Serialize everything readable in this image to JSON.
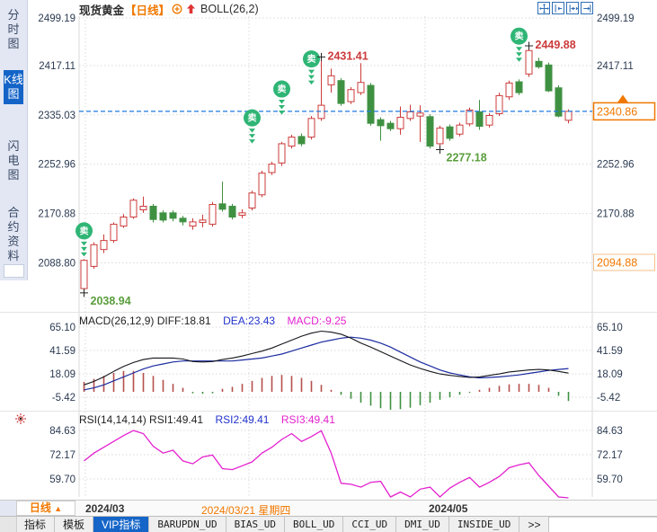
{
  "palette": {
    "accent": "#f07800",
    "up": "#cc3b3b",
    "down": "#3f9142",
    "signal": "#2fb575",
    "current_line": "#1e7adf",
    "diff": "#15161c",
    "dea": "#1b2ba0",
    "magenta": "#e321cf",
    "axis_text": "#2b3a52",
    "grid": "#d9d9d9",
    "annotation_low": "#5a9e3c",
    "soft_orange": "#f5c08a"
  },
  "sidebar": {
    "items": [
      {
        "label": "分时图",
        "active": false
      },
      {
        "label": "K线图",
        "active": true
      },
      {
        "label": "闪电图",
        "active": false
      },
      {
        "label": "合约资料",
        "active": false
      }
    ]
  },
  "header": {
    "symbol": "现货黄金",
    "period_tag": "【日线】",
    "indicator": "BOLL(26,2)",
    "icons": [
      "circle-plus-icon",
      "red-up-arrow-icon"
    ]
  },
  "toolbar": {
    "buttons": [
      "pan-crosshair",
      "compress-left",
      "compress-right",
      "shift-right"
    ]
  },
  "chart_data": {
    "type": "candlestick",
    "title": "现货黄金 日线 BOLL(26,2)",
    "main": {
      "y_ticks": [
        2499.19,
        2417.11,
        2335.03,
        2252.96,
        2170.88,
        2088.8
      ],
      "price_top": 2499.19,
      "price_bottom": 2088.8,
      "current_price": 2340.86,
      "low_marker": 2094.88,
      "sell_label": "卖",
      "sell_signals": [
        {
          "index": 0,
          "price": 2142
        },
        {
          "index": 17,
          "price": 2330
        },
        {
          "index": 20,
          "price": 2378
        },
        {
          "index": 23,
          "price": 2428
        },
        {
          "index": 44,
          "price": 2466
        }
      ],
      "annotations": [
        {
          "text": "2431.41",
          "type": "high",
          "index": 24,
          "color": "up"
        },
        {
          "text": "2449.88",
          "type": "high",
          "index": 45,
          "color": "up"
        },
        {
          "text": "2277.18",
          "type": "low",
          "index": 36,
          "color": "low"
        },
        {
          "text": "2038.94",
          "type": "low",
          "index": 0,
          "color": "low"
        }
      ],
      "candles": [
        [
          2046,
          2095,
          2038.94,
          2093
        ],
        [
          2083,
          2123,
          2079,
          2119
        ],
        [
          2111,
          2136,
          2105,
          2126
        ],
        [
          2126,
          2156,
          2122,
          2153
        ],
        [
          2150,
          2170,
          2147,
          2165
        ],
        [
          2165,
          2196,
          2162,
          2193
        ],
        [
          2177,
          2199,
          2172,
          2183
        ],
        [
          2183,
          2187,
          2156,
          2161
        ],
        [
          2172,
          2176,
          2156,
          2160
        ],
        [
          2172,
          2176,
          2158,
          2163
        ],
        [
          2163,
          2167,
          2151,
          2157
        ],
        [
          2150,
          2163,
          2144,
          2157
        ],
        [
          2156,
          2169,
          2148,
          2160
        ],
        [
          2153,
          2190,
          2149,
          2186
        ],
        [
          2187,
          2224,
          2174,
          2178
        ],
        [
          2183,
          2187,
          2161,
          2165
        ],
        [
          2168,
          2178,
          2163,
          2172
        ],
        [
          2180,
          2209,
          2176,
          2205
        ],
        [
          2202,
          2242,
          2198,
          2238
        ],
        [
          2239,
          2257,
          2235,
          2253
        ],
        [
          2255,
          2290,
          2250,
          2287
        ],
        [
          2283,
          2302,
          2279,
          2298
        ],
        [
          2299,
          2304,
          2283,
          2287
        ],
        [
          2298,
          2333,
          2294,
          2329
        ],
        [
          2329,
          2431.41,
          2325,
          2351
        ],
        [
          2385,
          2412,
          2372,
          2400
        ],
        [
          2392,
          2396,
          2350,
          2354
        ],
        [
          2357,
          2381,
          2353,
          2377
        ],
        [
          2372,
          2421,
          2368,
          2389
        ],
        [
          2384,
          2388,
          2317,
          2321
        ],
        [
          2327,
          2331,
          2292,
          2317
        ],
        [
          2321,
          2325,
          2308,
          2312
        ],
        [
          2312,
          2349,
          2302,
          2331
        ],
        [
          2329,
          2352,
          2325,
          2340
        ],
        [
          2333,
          2351,
          2290,
          2338
        ],
        [
          2332,
          2336,
          2279,
          2283
        ],
        [
          2287,
          2317,
          2277.18,
          2313
        ],
        [
          2315,
          2319,
          2292,
          2296
        ],
        [
          2303,
          2322,
          2299,
          2318
        ],
        [
          2320,
          2347,
          2316,
          2343
        ],
        [
          2340,
          2360,
          2310,
          2316
        ],
        [
          2318,
          2338,
          2314,
          2334
        ],
        [
          2337,
          2372,
          2333,
          2367
        ],
        [
          2365,
          2392,
          2360,
          2388
        ],
        [
          2390,
          2394,
          2368,
          2372
        ],
        [
          2403,
          2449.88,
          2398,
          2442
        ],
        [
          2424,
          2430,
          2412,
          2415
        ],
        [
          2418,
          2422,
          2373,
          2375
        ],
        [
          2380,
          2384,
          2331,
          2333
        ],
        [
          2326,
          2344,
          2321,
          2340.86
        ]
      ]
    },
    "macd": {
      "label": "MACD(26,12,9) DIFF:18.81",
      "dea_label": "DEA:23.43",
      "macd_label": "MACD:-9.25",
      "y_ticks": [
        65.1,
        41.59,
        18.09,
        -5.42
      ],
      "diff": [
        7,
        10.5,
        15,
        20.5,
        25.5,
        29.5,
        32.5,
        34,
        34,
        34,
        33,
        30.5,
        30,
        30.5,
        32.5,
        34,
        36,
        38.5,
        41,
        44,
        48,
        52,
        56,
        59,
        61,
        60,
        58,
        54,
        49,
        45,
        40.5,
        36,
        31.5,
        27,
        23.5,
        20.5,
        18,
        16.5,
        15.5,
        14.5,
        15,
        16.5,
        18,
        20,
        21,
        22,
        22.5,
        22,
        20.5,
        18.81
      ],
      "dea": [
        2,
        4,
        7,
        11,
        15,
        19,
        23,
        26,
        28,
        30,
        31,
        31,
        31,
        31,
        31,
        31,
        32,
        33,
        34,
        36,
        38,
        41,
        44,
        47,
        50,
        52,
        54,
        55,
        54,
        52,
        49,
        45,
        40,
        35,
        30,
        26,
        22,
        19,
        17,
        15,
        14,
        14.5,
        15,
        16,
        17,
        18.5,
        20,
        21.5,
        22.5,
        23.43
      ],
      "hist": [
        10,
        13,
        16,
        19,
        21,
        21,
        19,
        16,
        12,
        8,
        4,
        -1.5,
        -2,
        -1.5,
        3,
        5,
        8,
        11,
        14,
        16,
        17,
        16,
        14,
        11,
        7,
        2,
        -3,
        -7,
        -11,
        -14,
        -16.5,
        -18,
        -17.5,
        -16,
        -13.5,
        -11,
        -8,
        -5.5,
        -3,
        -1,
        2,
        4,
        6,
        7.5,
        8,
        8,
        7,
        4,
        -4,
        -9.25
      ]
    },
    "rsi": {
      "label": "RSI(14,14,14) RSI1:49.41",
      "rsi2_label": "RSI2:49.41",
      "rsi3_label": "RSI3:49.41",
      "y_ticks": [
        84.63,
        72.17,
        59.7
      ],
      "values": [
        69,
        73,
        76,
        79,
        82,
        84.6,
        83,
        76.5,
        73,
        74.5,
        69,
        67.5,
        71,
        72,
        65,
        64.5,
        66.5,
        68.5,
        73,
        76,
        80,
        83,
        79,
        81.5,
        84.5,
        73,
        57.5,
        57,
        55.5,
        58,
        58.5,
        50.5,
        53,
        50.5,
        54.5,
        55.5,
        50.5,
        55,
        58,
        60.5,
        55.5,
        58,
        61,
        65.5,
        67,
        68,
        61.5,
        56,
        50.5,
        49.41
      ]
    },
    "x_labels": [
      {
        "text": "2024/03",
        "x": 95,
        "highlight": false
      },
      {
        "text": "2024/03/21 星期四",
        "x": 224,
        "highlight": true
      },
      {
        "text": "2024/05",
        "x": 477,
        "highlight": false
      }
    ],
    "v_gridlines": [
      95,
      277,
      473
    ]
  },
  "footer": {
    "period_button": "日线",
    "period_arrow": "▲",
    "tabs": [
      {
        "label": "指标",
        "active": false,
        "mono": false
      },
      {
        "label": "模板",
        "active": false,
        "mono": false
      },
      {
        "label": "VIP指标",
        "active": true,
        "mono": false
      },
      {
        "label": "BARUPDN_UD",
        "active": false,
        "mono": true
      },
      {
        "label": "BIAS_UD",
        "active": false,
        "mono": true
      },
      {
        "label": "BOLL_UD",
        "active": false,
        "mono": true
      },
      {
        "label": "CCI_UD",
        "active": false,
        "mono": true
      },
      {
        "label": "DMI_UD",
        "active": false,
        "mono": true
      },
      {
        "label": "INSIDE_UD",
        "active": false,
        "mono": true
      },
      {
        "label": ">>",
        "active": false,
        "mono": false
      }
    ]
  }
}
